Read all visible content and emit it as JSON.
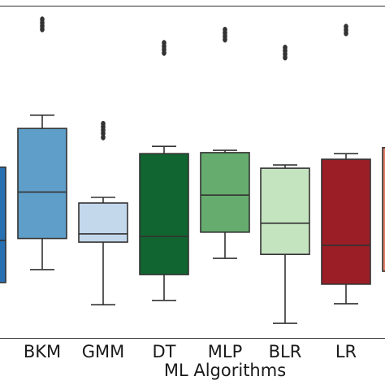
{
  "chart_data": {
    "type": "boxplot",
    "title": "",
    "xlabel": "ML Algorithms",
    "ylabel": "",
    "grid": false,
    "ylim": [
      0,
      100
    ],
    "categories": [
      "",
      "BKM",
      "GMM",
      "DT",
      "MLP",
      "BLR",
      "LR",
      ""
    ],
    "boxes": [
      {
        "category": "",
        "color": "#2870b1",
        "q1": 16.7,
        "median": 29.4,
        "q3": 51.5,
        "whisker_low": null,
        "whisker_high": null,
        "outliers": []
      },
      {
        "category": "BKM",
        "color": "#5f9ec9",
        "q1": 30.0,
        "median": 44.0,
        "q3": 63.2,
        "whisker_low": 20.6,
        "whisker_high": 67.2,
        "outliers": [
          93.1,
          94.1,
          95.1,
          96.1
        ]
      },
      {
        "category": "GMM",
        "color": "#c4d8ec",
        "q1": 28.9,
        "median": 31.4,
        "q3": 40.7,
        "whisker_low": 10.0,
        "whisker_high": 42.4,
        "outliers": [
          60.5,
          61.7,
          62.7,
          63.7,
          64.6
        ]
      },
      {
        "category": "DT",
        "color": "#116530",
        "q1": 19.1,
        "median": 30.6,
        "q3": 55.6,
        "whisker_low": 11.3,
        "whisker_high": 57.8,
        "outliers": [
          86.0,
          87.0,
          88.0,
          89.0
        ]
      },
      {
        "category": "MLP",
        "color": "#66ac6e",
        "q1": 31.9,
        "median": 43.1,
        "q3": 55.9,
        "whisker_low": 24.0,
        "whisker_high": 56.6,
        "outliers": [
          90.0,
          91.0,
          92.0,
          93.0
        ]
      },
      {
        "category": "BLR",
        "color": "#c4e3bf",
        "q1": 25.2,
        "median": 34.6,
        "q3": 51.2,
        "whisker_low": 4.4,
        "whisker_high": 52.2,
        "outliers": [
          84.6,
          85.6,
          86.6,
          87.6
        ]
      },
      {
        "category": "LR",
        "color": "#9b1e26",
        "q1": 16.2,
        "median": 27.9,
        "q3": 53.9,
        "whisker_low": 10.3,
        "whisker_high": 55.6,
        "outliers": [
          91.9,
          92.9,
          93.9
        ]
      },
      {
        "category": "",
        "color": "#e3806a",
        "q1": 20.1,
        "median": null,
        "q3": 57.4,
        "whisker_low": null,
        "whisker_high": null,
        "outliers": []
      }
    ]
  }
}
